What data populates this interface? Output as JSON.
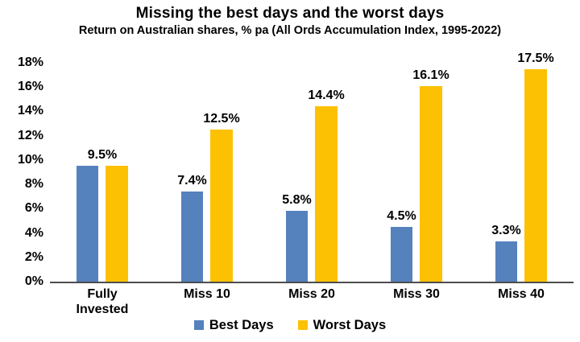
{
  "chart_data": {
    "type": "bar",
    "title": "Missing the best days and the worst days",
    "subtitle": "Return on Australian shares, % pa (All Ords Accumulation Index, 1995-2022)",
    "categories": [
      "Fully Invested",
      "Miss 10",
      "Miss 20",
      "Miss 30",
      "Miss 40"
    ],
    "series": [
      {
        "name": "Best Days",
        "color": "#5581BD",
        "values": [
          9.5,
          7.4,
          5.8,
          4.5,
          3.3
        ],
        "data_labels": [
          "9.5%",
          "7.4%",
          "5.8%",
          "4.5%",
          "3.3%"
        ]
      },
      {
        "name": "Worst Days",
        "color": "#FDC103",
        "values": [
          9.5,
          12.5,
          14.4,
          16.1,
          17.5
        ],
        "data_labels": [
          "",
          "12.5%",
          "14.4%",
          "16.1%",
          "17.5%"
        ]
      }
    ],
    "shared_label_categories": [
      0
    ],
    "xlabel": "",
    "ylabel": "",
    "ylim": [
      0,
      18
    ],
    "y_tick_step": 2,
    "y_tick_labels": [
      "0%",
      "2%",
      "4%",
      "6%",
      "8%",
      "10%",
      "12%",
      "14%",
      "16%",
      "18%"
    ],
    "grid": false,
    "legend_position": "bottom",
    "axis_line_color": "#4d4d4d",
    "text_color": "#000000",
    "background_color": "#ffffff"
  }
}
